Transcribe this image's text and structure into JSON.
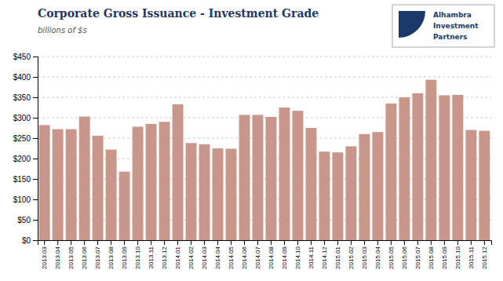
{
  "chart_data": {
    "type": "bar",
    "title": "Corporate Gross Issuance - Investment Grade",
    "subtitle": "billions of $s",
    "annotation": "Alhambra\nInvestment\nPartners",
    "categories": [
      "2013.03",
      "2013.04",
      "2013.05",
      "2013.06",
      "2013.07",
      "2013.08",
      "2013.09",
      "2013.10",
      "2013.11",
      "2013.12",
      "2014.01",
      "2014.02",
      "2014.03",
      "2014.04",
      "2014.05",
      "2014.06",
      "2014.07",
      "2014.08",
      "2014.09",
      "2014.10",
      "2014.11",
      "2014.12",
      "2015.01",
      "2015.02",
      "2015.03",
      "2015.04",
      "2015.05",
      "2015.06",
      "2015.07",
      "2015.08",
      "2015.09",
      "2015.10",
      "2015.11",
      "2015.12"
    ],
    "values": [
      282,
      272,
      272,
      303,
      256,
      222,
      168,
      278,
      285,
      290,
      333,
      238,
      235,
      225,
      224,
      307,
      307,
      302,
      325,
      317,
      275,
      217,
      215,
      230,
      260,
      265,
      335,
      350,
      360,
      393,
      355,
      356,
      270,
      268
    ],
    "color": "#C8968A",
    "ylim": [
      0,
      450
    ],
    "yticks": [
      {
        "value": 0,
        "label": "$0"
      },
      {
        "value": 50,
        "label": "$50"
      },
      {
        "value": 100,
        "label": "$100"
      },
      {
        "value": 150,
        "label": "$150"
      },
      {
        "value": 200,
        "label": "$200"
      },
      {
        "value": 250,
        "label": "$250"
      },
      {
        "value": 300,
        "label": "$300"
      },
      {
        "value": 350,
        "label": "$350"
      },
      {
        "value": 400,
        "label": "$400"
      },
      {
        "value": 450,
        "label": "$450"
      }
    ],
    "grid": true
  }
}
